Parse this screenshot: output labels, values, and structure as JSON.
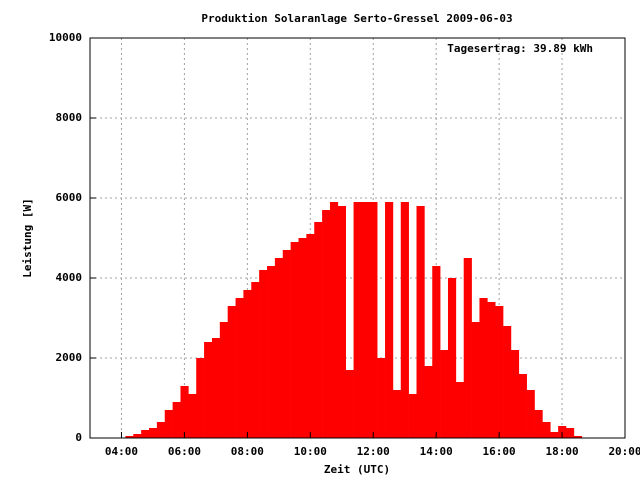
{
  "chart_data": {
    "type": "impulse",
    "title": "Produktion Solaranlage Serto-Gressel 2009-06-03",
    "annotation": "Tagesertrag: 39.89 kWh",
    "xlabel": "Zeit (UTC)",
    "ylabel": "Leistung [W]",
    "color": "#ff0000",
    "grid": true,
    "xlim": [
      3,
      20
    ],
    "xticks": [
      {
        "value": 4,
        "label": "04:00"
      },
      {
        "value": 6,
        "label": "06:00"
      },
      {
        "value": 8,
        "label": "08:00"
      },
      {
        "value": 10,
        "label": "10:00"
      },
      {
        "value": 12,
        "label": "12:00"
      },
      {
        "value": 14,
        "label": "14:00"
      },
      {
        "value": 16,
        "label": "16:00"
      },
      {
        "value": 18,
        "label": "18:00"
      },
      {
        "value": 20,
        "label": "20:00"
      }
    ],
    "ylim": [
      0,
      10000
    ],
    "yticks": [
      0,
      2000,
      4000,
      6000,
      8000,
      10000
    ],
    "x": [
      4,
      4.25,
      4.5,
      4.75,
      5,
      5.25,
      5.5,
      5.75,
      6,
      6.25,
      6.5,
      6.75,
      7,
      7.25,
      7.5,
      7.75,
      8,
      8.25,
      8.5,
      8.75,
      9,
      9.25,
      9.5,
      9.75,
      10,
      10.25,
      10.5,
      10.75,
      11,
      11.25,
      11.5,
      11.75,
      12,
      12.25,
      12.5,
      12.75,
      13,
      13.25,
      13.5,
      13.75,
      14,
      14.25,
      14.5,
      14.75,
      15,
      15.25,
      15.5,
      15.75,
      16,
      16.25,
      16.5,
      16.75,
      17,
      17.25,
      17.5,
      17.75,
      18,
      18.25,
      18.5
    ],
    "values": [
      0,
      50,
      100,
      200,
      250,
      400,
      700,
      900,
      1300,
      1100,
      2000,
      2400,
      2500,
      2900,
      3300,
      3500,
      3700,
      3900,
      4200,
      4300,
      4500,
      4700,
      4900,
      5000,
      5100,
      5400,
      5700,
      5900,
      5800,
      1700,
      5900,
      5900,
      5900,
      2000,
      5900,
      1200,
      5900,
      1100,
      5800,
      1800,
      4300,
      2200,
      4000,
      1400,
      4500,
      2900,
      3500,
      3400,
      3300,
      2800,
      2200,
      1600,
      1200,
      700,
      400,
      150,
      300,
      250,
      50
    ]
  }
}
